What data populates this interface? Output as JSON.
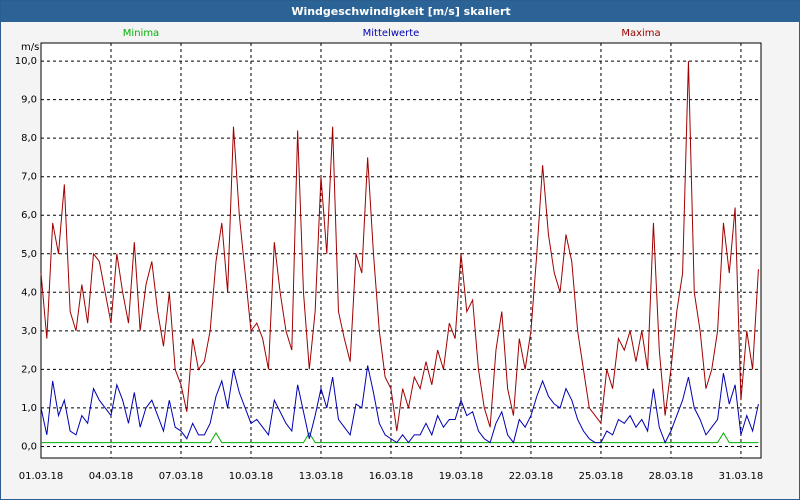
{
  "chart_data": {
    "type": "line",
    "title": "Windgeschwindigkeit [m/s] skaliert",
    "y_label": "m/s",
    "grid": true,
    "x": [
      0,
      0.25,
      0.5,
      0.75,
      1,
      1.25,
      1.5,
      1.75,
      2,
      2.25,
      2.5,
      2.75,
      3,
      3.25,
      3.5,
      3.75,
      4,
      4.25,
      4.5,
      4.75,
      5,
      5.25,
      5.5,
      5.75,
      6,
      6.25,
      6.5,
      6.75,
      7,
      7.25,
      7.5,
      7.75,
      8,
      8.25,
      8.5,
      8.75,
      9,
      9.25,
      9.5,
      9.75,
      10,
      10.25,
      10.5,
      10.75,
      11,
      11.25,
      11.5,
      11.75,
      12,
      12.25,
      12.5,
      12.75,
      13,
      13.25,
      13.5,
      13.75,
      14,
      14.25,
      14.5,
      14.75,
      15,
      15.25,
      15.5,
      15.75,
      16,
      16.25,
      16.5,
      16.75,
      17,
      17.25,
      17.5,
      17.75,
      18,
      18.25,
      18.5,
      18.75,
      19,
      19.25,
      19.5,
      19.75,
      20,
      20.25,
      20.5,
      20.75,
      21,
      21.25,
      21.5,
      21.75,
      22,
      22.25,
      22.5,
      22.75,
      23,
      23.25,
      23.5,
      23.75,
      24,
      24.25,
      24.5,
      24.75,
      25,
      25.25,
      25.5,
      25.75,
      26,
      26.25,
      26.5,
      26.75,
      27,
      27.25,
      27.5,
      27.75,
      28,
      28.25,
      28.5,
      28.75,
      29,
      29.25,
      29.5,
      29.75,
      30,
      30.25,
      30.5,
      30.75
    ],
    "xlim": [
      0,
      30.86
    ],
    "xticks": [
      {
        "value": 0,
        "label": "01.03.18"
      },
      {
        "value": 3,
        "label": "04.03.18"
      },
      {
        "value": 6,
        "label": "07.03.18"
      },
      {
        "value": 9,
        "label": "10.03.18"
      },
      {
        "value": 12,
        "label": "13.03.18"
      },
      {
        "value": 15,
        "label": "16.03.18"
      },
      {
        "value": 18,
        "label": "19.03.18"
      },
      {
        "value": 21,
        "label": "22.03.18"
      },
      {
        "value": 24,
        "label": "25.03.18"
      },
      {
        "value": 27,
        "label": "28.03.18"
      },
      {
        "value": 30,
        "label": "31.03.18"
      }
    ],
    "ylim": [
      -0.3,
      10.47
    ],
    "yticks": [
      {
        "value": 0,
        "label": "0,0"
      },
      {
        "value": 1,
        "label": "1,0"
      },
      {
        "value": 2,
        "label": "2,0"
      },
      {
        "value": 3,
        "label": "3,0"
      },
      {
        "value": 4,
        "label": "4,0"
      },
      {
        "value": 5,
        "label": "5,0"
      },
      {
        "value": 6,
        "label": "6,0"
      },
      {
        "value": 7,
        "label": "7,0"
      },
      {
        "value": 8,
        "label": "8,0"
      },
      {
        "value": 9,
        "label": "9,0"
      },
      {
        "value": 10,
        "label": "10,0"
      }
    ],
    "series": [
      {
        "name": "Minima",
        "color": "#00b000",
        "values": [
          0.1,
          0.1,
          0.1,
          0.1,
          0.1,
          0.1,
          0.1,
          0.1,
          0.1,
          0.1,
          0.1,
          0.1,
          0.1,
          0.1,
          0.1,
          0.1,
          0.1,
          0.1,
          0.1,
          0.1,
          0.1,
          0.1,
          0.1,
          0.1,
          0.1,
          0.1,
          0.1,
          0.1,
          0.1,
          0.1,
          0.35,
          0.1,
          0.1,
          0.1,
          0.1,
          0.1,
          0.1,
          0.1,
          0.1,
          0.1,
          0.1,
          0.1,
          0.1,
          0.1,
          0.1,
          0.1,
          0.35,
          0.1,
          0.1,
          0.1,
          0.1,
          0.1,
          0.1,
          0.1,
          0.1,
          0.1,
          0.1,
          0.1,
          0.1,
          0.1,
          0.1,
          0.1,
          0.1,
          0.1,
          0.1,
          0.1,
          0.1,
          0.1,
          0.1,
          0.1,
          0.1,
          0.1,
          0.1,
          0.1,
          0.1,
          0.1,
          0.1,
          0.1,
          0.1,
          0.1,
          0.1,
          0.1,
          0.1,
          0.1,
          0.1,
          0.1,
          0.1,
          0.1,
          0.1,
          0.1,
          0.1,
          0.1,
          0.1,
          0.1,
          0.1,
          0.1,
          0.1,
          0.1,
          0.1,
          0.1,
          0.1,
          0.1,
          0.1,
          0.1,
          0.1,
          0.1,
          0.1,
          0.1,
          0.1,
          0.1,
          0.1,
          0.1,
          0.1,
          0.1,
          0.1,
          0.1,
          0.1,
          0.35,
          0.1,
          0.1,
          0.1,
          0.1,
          0.1,
          0.1
        ]
      },
      {
        "name": "Mittelwerte",
        "color": "#0000b0",
        "values": [
          1.0,
          0.3,
          1.7,
          0.8,
          1.2,
          0.4,
          0.3,
          0.8,
          0.6,
          1.5,
          1.2,
          1.0,
          0.8,
          1.6,
          1.2,
          0.6,
          1.4,
          0.5,
          1.0,
          1.2,
          0.8,
          0.4,
          1.2,
          0.5,
          0.4,
          0.2,
          0.6,
          0.3,
          0.3,
          0.6,
          1.3,
          1.7,
          1.0,
          2.0,
          1.4,
          1.0,
          0.6,
          0.7,
          0.5,
          0.3,
          1.2,
          0.9,
          0.6,
          0.4,
          1.6,
          0.9,
          0.2,
          0.8,
          1.5,
          1.0,
          1.8,
          0.7,
          0.5,
          0.3,
          1.1,
          1.0,
          2.1,
          1.4,
          0.6,
          0.3,
          0.2,
          0.1,
          0.3,
          0.1,
          0.3,
          0.3,
          0.6,
          0.3,
          0.8,
          0.5,
          0.7,
          0.7,
          1.2,
          0.8,
          0.9,
          0.4,
          0.2,
          0.1,
          0.6,
          0.9,
          0.3,
          0.1,
          0.7,
          0.5,
          0.8,
          1.3,
          1.7,
          1.3,
          1.1,
          1.0,
          1.5,
          1.2,
          0.7,
          0.4,
          0.2,
          0.1,
          0.1,
          0.4,
          0.3,
          0.7,
          0.6,
          0.8,
          0.5,
          0.7,
          0.4,
          1.5,
          0.5,
          0.1,
          0.4,
          0.8,
          1.2,
          1.8,
          1.0,
          0.7,
          0.3,
          0.5,
          0.7,
          1.9,
          1.1,
          1.6,
          0.3,
          0.8,
          0.4,
          1.1
        ]
      },
      {
        "name": "Maxima",
        "color": "#a00000",
        "values": [
          4.5,
          2.8,
          5.8,
          5.0,
          6.8,
          3.5,
          3.0,
          4.2,
          3.2,
          5.0,
          4.8,
          4.0,
          3.2,
          5.0,
          4.0,
          3.2,
          5.3,
          3.0,
          4.2,
          4.8,
          3.5,
          2.6,
          4.0,
          2.0,
          1.6,
          0.9,
          2.8,
          2.0,
          2.2,
          3.0,
          4.8,
          5.8,
          4.0,
          8.3,
          6.0,
          4.5,
          3.0,
          3.2,
          2.8,
          2.0,
          5.3,
          4.0,
          3.0,
          2.5,
          8.2,
          4.0,
          2.0,
          3.5,
          7.0,
          5.0,
          8.3,
          3.5,
          2.8,
          2.2,
          5.0,
          4.5,
          7.5,
          5.0,
          3.0,
          1.8,
          1.5,
          0.4,
          1.5,
          1.0,
          1.8,
          1.5,
          2.2,
          1.6,
          2.5,
          2.0,
          3.2,
          2.8,
          5.0,
          3.5,
          3.8,
          2.0,
          1.0,
          0.5,
          2.5,
          3.5,
          1.5,
          0.8,
          2.8,
          2.0,
          3.0,
          5.0,
          7.3,
          5.5,
          4.5,
          4.0,
          5.5,
          4.8,
          3.0,
          2.0,
          1.0,
          0.8,
          0.6,
          2.0,
          1.5,
          2.8,
          2.5,
          3.0,
          2.2,
          3.0,
          2.0,
          5.8,
          2.5,
          0.8,
          2.0,
          3.5,
          4.5,
          10.0,
          4.0,
          3.0,
          1.5,
          2.0,
          3.0,
          5.8,
          4.5,
          6.2,
          1.2,
          3.0,
          2.0,
          4.6
        ]
      }
    ]
  }
}
